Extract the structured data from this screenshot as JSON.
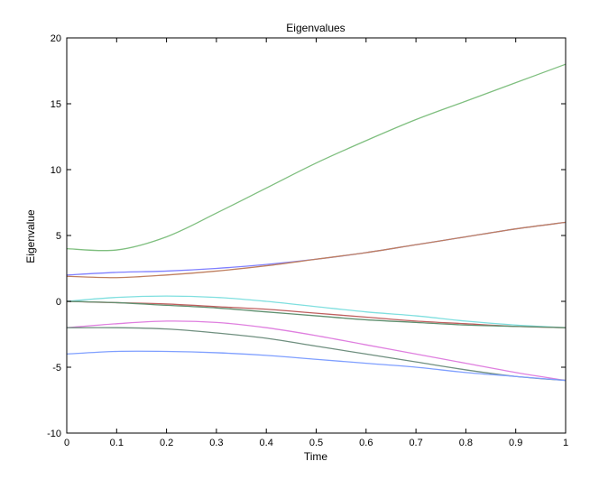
{
  "chart_data": {
    "type": "line",
    "title": "Eigenvalues",
    "xlabel": "Time",
    "ylabel": "Eigenvalue",
    "xlim": [
      0,
      1
    ],
    "ylim": [
      -10,
      20
    ],
    "xticks": [
      "0",
      "0.1",
      "0.2",
      "0.3",
      "0.4",
      "0.5",
      "0.6",
      "0.7",
      "0.8",
      "0.9",
      "1"
    ],
    "yticks": [
      "-10",
      "-5",
      "0",
      "5",
      "10",
      "15",
      "20"
    ],
    "grid": false,
    "x": [
      0,
      0.1,
      0.2,
      0.3,
      0.4,
      0.5,
      0.6,
      0.7,
      0.8,
      0.9,
      1.0
    ],
    "series": [
      {
        "color": "#7fbf7f",
        "values": [
          4.0,
          3.9,
          4.9,
          6.7,
          8.6,
          10.5,
          12.2,
          13.8,
          15.2,
          16.6,
          18.0
        ]
      },
      {
        "color": "#7f7fff",
        "values": [
          2.0,
          2.2,
          2.3,
          2.5,
          2.8,
          3.2,
          3.7,
          4.3,
          4.9,
          5.5,
          6.0
        ]
      },
      {
        "color": "#bf7f5f",
        "values": [
          1.9,
          1.8,
          2.0,
          2.3,
          2.7,
          3.2,
          3.7,
          4.3,
          4.9,
          5.5,
          6.0
        ]
      },
      {
        "color": "#7fdfdf",
        "values": [
          0.0,
          0.3,
          0.4,
          0.3,
          0.0,
          -0.4,
          -0.8,
          -1.1,
          -1.5,
          -1.8,
          -2.0
        ]
      },
      {
        "color": "#bf5f5f",
        "values": [
          0.0,
          -0.1,
          -0.2,
          -0.4,
          -0.6,
          -0.9,
          -1.2,
          -1.5,
          -1.7,
          -1.9,
          -2.0
        ]
      },
      {
        "color": "#5f8f6f",
        "values": [
          0.0,
          -0.1,
          -0.3,
          -0.5,
          -0.8,
          -1.1,
          -1.4,
          -1.6,
          -1.8,
          -1.9,
          -2.0
        ]
      },
      {
        "color": "#df7fdf",
        "values": [
          -2.0,
          -1.7,
          -1.5,
          -1.6,
          -2.0,
          -2.6,
          -3.3,
          -4.0,
          -4.7,
          -5.4,
          -6.0
        ]
      },
      {
        "color": "#6f8f7f",
        "values": [
          -2.0,
          -2.0,
          -2.1,
          -2.4,
          -2.8,
          -3.4,
          -4.0,
          -4.6,
          -5.2,
          -5.7,
          -6.0
        ]
      },
      {
        "color": "#7f9fff",
        "values": [
          -4.0,
          -3.8,
          -3.8,
          -3.9,
          -4.1,
          -4.4,
          -4.7,
          -5.0,
          -5.4,
          -5.7,
          -6.0
        ]
      }
    ]
  }
}
